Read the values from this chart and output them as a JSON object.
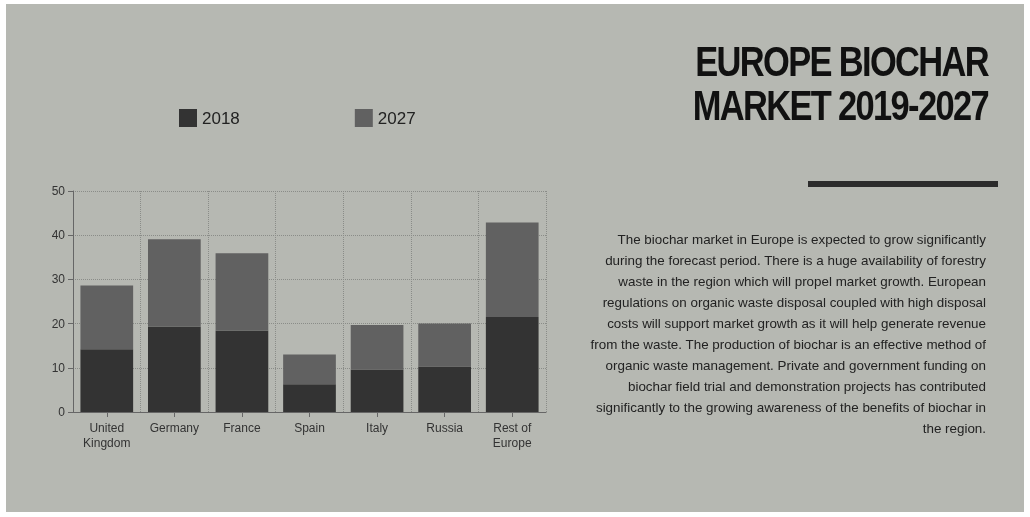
{
  "chart_data": {
    "type": "bar",
    "title": "EUROPE BIOCHAR MARKET 2019-2027",
    "categories": [
      "United\nKingdom",
      "Germany",
      "France",
      "Spain",
      "Italy",
      "Russia",
      "Rest of\nEurope"
    ],
    "stacked": true,
    "series": [
      {
        "name": "2018",
        "color": "#333333",
        "values": [
          14.2,
          19.3,
          18.4,
          6.3,
          9.6,
          10.3,
          21.5
        ]
      },
      {
        "name": "2027",
        "color": "#616161",
        "values": [
          14.4,
          19.8,
          17.5,
          6.7,
          10.1,
          9.7,
          21.4
        ]
      }
    ],
    "ylim": [
      0,
      50
    ],
    "yticks": [
      0,
      10,
      20,
      30,
      40,
      50
    ],
    "grid": true,
    "legend": "top left",
    "annotations": [
      "The biochar market in Europe is expected to grow significantly during the forecast period. There is a huge availability of forestry waste in the region which will propel market growth. European regulations on organic waste disposal coupled with high disposal costs will support market growth as it will help generate revenue from the waste. The production of biochar is an effective method of organic waste management. Private and government funding on biochar field trial and demonstration projects has contributed significantly to the growing awareness of the benefits of biochar in the region."
    ]
  }
}
